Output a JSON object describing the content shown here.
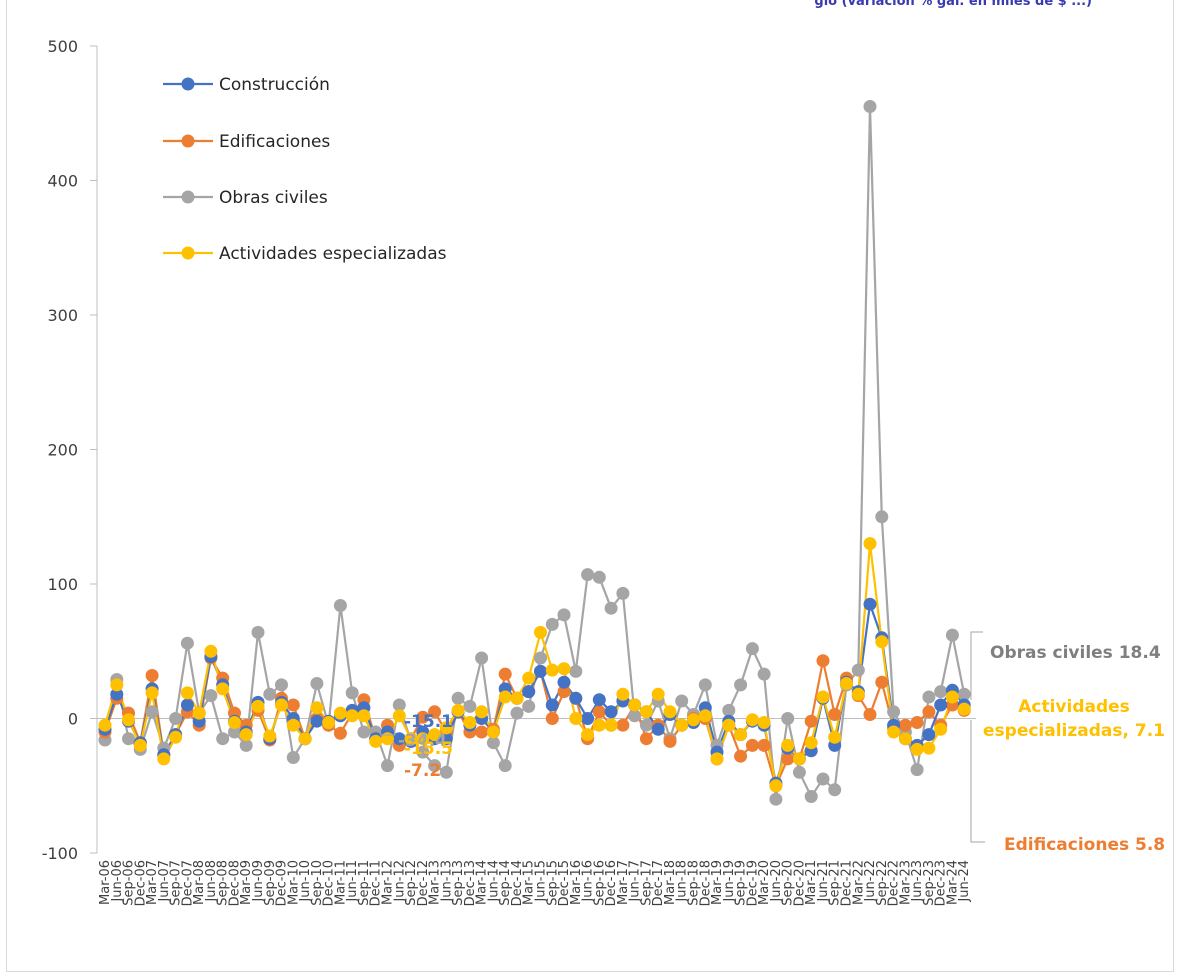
{
  "chart_data": {
    "type": "line",
    "title": "",
    "xlabel": "",
    "ylabel": "",
    "ylim": [
      -100,
      500
    ],
    "yticks": [
      -100,
      0,
      100,
      200,
      300,
      400,
      500
    ],
    "grid": false,
    "legend_position": "top-left",
    "x": [
      "Mar-06",
      "Jun-06",
      "Sep-06",
      "Dec-06",
      "Mar-07",
      "Jun-07",
      "Sep-07",
      "Dec-07",
      "Mar-08",
      "Jun-08",
      "Sep-08",
      "Dec-08",
      "Mar-09",
      "Jun-09",
      "Sep-09",
      "Dec-09",
      "Mar-10",
      "Jun-10",
      "Sep-10",
      "Dec-10",
      "Mar-11",
      "Jun-11",
      "Sep-11",
      "Dec-11",
      "Mar-12",
      "Jun-12",
      "Sep-12",
      "Dec-12",
      "Mar-13",
      "Jun-13",
      "Sep-13",
      "Dec-13",
      "Mar-14",
      "Jun-14",
      "Sep-14",
      "Dec-14",
      "Mar-15",
      "Jun-15",
      "Sep-15",
      "Dec-15",
      "Mar-16",
      "Jun-16",
      "Sep-16",
      "Dec-16",
      "Mar-17",
      "Jun-17",
      "Sep-17",
      "Dec-17",
      "Mar-18",
      "Jun-18",
      "Sep-18",
      "Dec-18",
      "Mar-19",
      "Jun-19",
      "Sep-19",
      "Dec-19",
      "Mar-20",
      "Jun-20",
      "Sep-20",
      "Dec-20",
      "Mar-21",
      "Jun-21",
      "Sep-21",
      "Dec-21",
      "Mar-22",
      "Jun-22",
      "Sep-22",
      "Dec-22",
      "Mar-23",
      "Jun-23",
      "Sep-23",
      "Dec-23",
      "Mar-24",
      "Jun-24"
    ],
    "x_tick_labels": [
      "Mar-06",
      "Jun-06",
      "Sep-06",
      "Dec-06",
      "Mar-07",
      "Jun-07",
      "Sep-07",
      "Dec-07",
      "Mar-08",
      "Jun-08",
      "Sep-08",
      "Dec-08",
      "Mar-09",
      "Jun-09",
      "Sep-09",
      "Dec-09",
      "Mar-10",
      "Jun-10",
      "Sep-10",
      "Dec-10",
      "Mar-11",
      "Jun-11",
      "Sep-11",
      "Dec-11",
      "Mar-12",
      "Jun-12",
      "Sep-12",
      "Dec-12",
      "Mar-13",
      "Jun-13",
      "Sep-13",
      "Dec-13",
      "Mar-14",
      "Jun-14",
      "Sep-14",
      "Dec-14",
      "Mar-15",
      "Jun-15",
      "Sep-15",
      "Dec-15",
      "Mar-16",
      "Jun-16",
      "Sep-16",
      "Dec-16",
      "Mar-17",
      "Jun-17",
      "Sep-17",
      "Dec-17",
      "Mar-18",
      "Jun-18",
      "Sep-18",
      "Dec-18",
      "Mar-19",
      "Jun-19",
      "Sep-19",
      "Dec-19",
      "Mar-20",
      "Jun-20",
      "Sep-20",
      "Dec-20",
      "Mar-21",
      "Jun-21",
      "Sep-21",
      "Dec-21",
      "Mar-22",
      "Jun-22",
      "Sep-22",
      "Dec-22",
      "Mar-23",
      "Jun-23",
      "Sep-23",
      "Dec-23",
      "Mar-24",
      "Jun-24"
    ],
    "series": [
      {
        "name": "Construcción",
        "color": "#4472c4",
        "values": [
          -8,
          18,
          -2,
          -18,
          22,
          -27,
          -12,
          10,
          -2,
          46,
          25,
          -2,
          -10,
          12,
          -15,
          12,
          0,
          -15,
          -2,
          -2,
          2,
          6,
          8,
          -15,
          -10,
          -15,
          -17,
          -10,
          -15,
          -15,
          5,
          -5,
          0,
          -10,
          22,
          15,
          20,
          35,
          10,
          27,
          15,
          0,
          14,
          5,
          13,
          10,
          5,
          -8,
          3,
          -5,
          -3,
          8,
          -25,
          -2,
          -12,
          -2,
          -5,
          -48,
          -22,
          -30,
          -24,
          15,
          -20,
          27,
          20,
          85,
          60,
          -5,
          -15,
          -20,
          -12,
          10,
          21,
          10
        ]
      },
      {
        "name": "Edificaciones",
        "color": "#ed7d31",
        "values": [
          -10,
          15,
          4,
          -18,
          32,
          -27,
          -12,
          5,
          -5,
          45,
          30,
          4,
          -5,
          6,
          -16,
          15,
          10,
          -15,
          0,
          -5,
          -11,
          4,
          14,
          -15,
          -5,
          -20,
          -15,
          1,
          5,
          -10,
          5,
          -10,
          -10,
          -8,
          33,
          15,
          20,
          35,
          0,
          20,
          15,
          -15,
          5,
          -5,
          -5,
          10,
          -15,
          -5,
          -17,
          -5,
          0,
          0,
          -30,
          -5,
          -28,
          -20,
          -20,
          -50,
          -30,
          -30,
          -2,
          43,
          3,
          30,
          17,
          3,
          27,
          -7,
          -5,
          -3,
          5,
          -5,
          10,
          6
        ]
      },
      {
        "name": "Obras civiles",
        "color": "#a5a5a5",
        "values": [
          -16,
          29,
          -15,
          -23,
          5,
          -22,
          0,
          56,
          4,
          17,
          -15,
          -10,
          -20,
          64,
          18,
          25,
          -29,
          -15,
          26,
          -5,
          84,
          19,
          -10,
          -10,
          -35,
          10,
          -17,
          -25,
          -35,
          -40,
          15,
          9,
          45,
          -18,
          -35,
          4,
          9,
          45,
          70,
          77,
          35,
          107,
          105,
          82,
          93,
          2,
          -5,
          13,
          -15,
          13,
          3,
          25,
          -20,
          6,
          25,
          52,
          33,
          -60,
          0,
          -40,
          -58,
          -45,
          -53,
          25,
          36,
          455,
          150,
          5,
          -10,
          -38,
          16,
          20,
          62,
          18
        ]
      },
      {
        "name": "Actividades especializadas",
        "color": "#ffc000",
        "values": [
          -5,
          25,
          -1,
          -20,
          19,
          -30,
          -14,
          19,
          4,
          50,
          22,
          -3,
          -12,
          9,
          -13,
          10,
          -5,
          -15,
          8,
          -3,
          4,
          2,
          2,
          -17,
          -15,
          2,
          -15,
          -15,
          -12,
          -7,
          6,
          -3,
          5,
          -10,
          16,
          15,
          30,
          64,
          36,
          37,
          0,
          -12,
          -5,
          -5,
          18,
          10,
          5,
          18,
          5,
          -5,
          -1,
          2,
          -30,
          -5,
          -12,
          -1,
          -3,
          -50,
          -20,
          -30,
          -18,
          16,
          -14,
          26,
          18,
          130,
          57,
          -10,
          -15,
          -23,
          -22,
          -8,
          16,
          7
        ]
      }
    ],
    "annotations": {
      "obras_civiles": "Obras civiles 18.4",
      "actividades": "Actividades especializadas, 7.1",
      "edificaciones": "Edificaciones 5.8",
      "mid_label_1": "-15.1",
      "mid_label_2": "-34.4",
      "mid_label_3": "-15.5",
      "mid_label_4": "-7.2"
    }
  },
  "header": {
    "title_fragment": "glo (variación % gal. en miles de $ ...)"
  },
  "frame": {
    "border_color": "#d9d9d9"
  }
}
